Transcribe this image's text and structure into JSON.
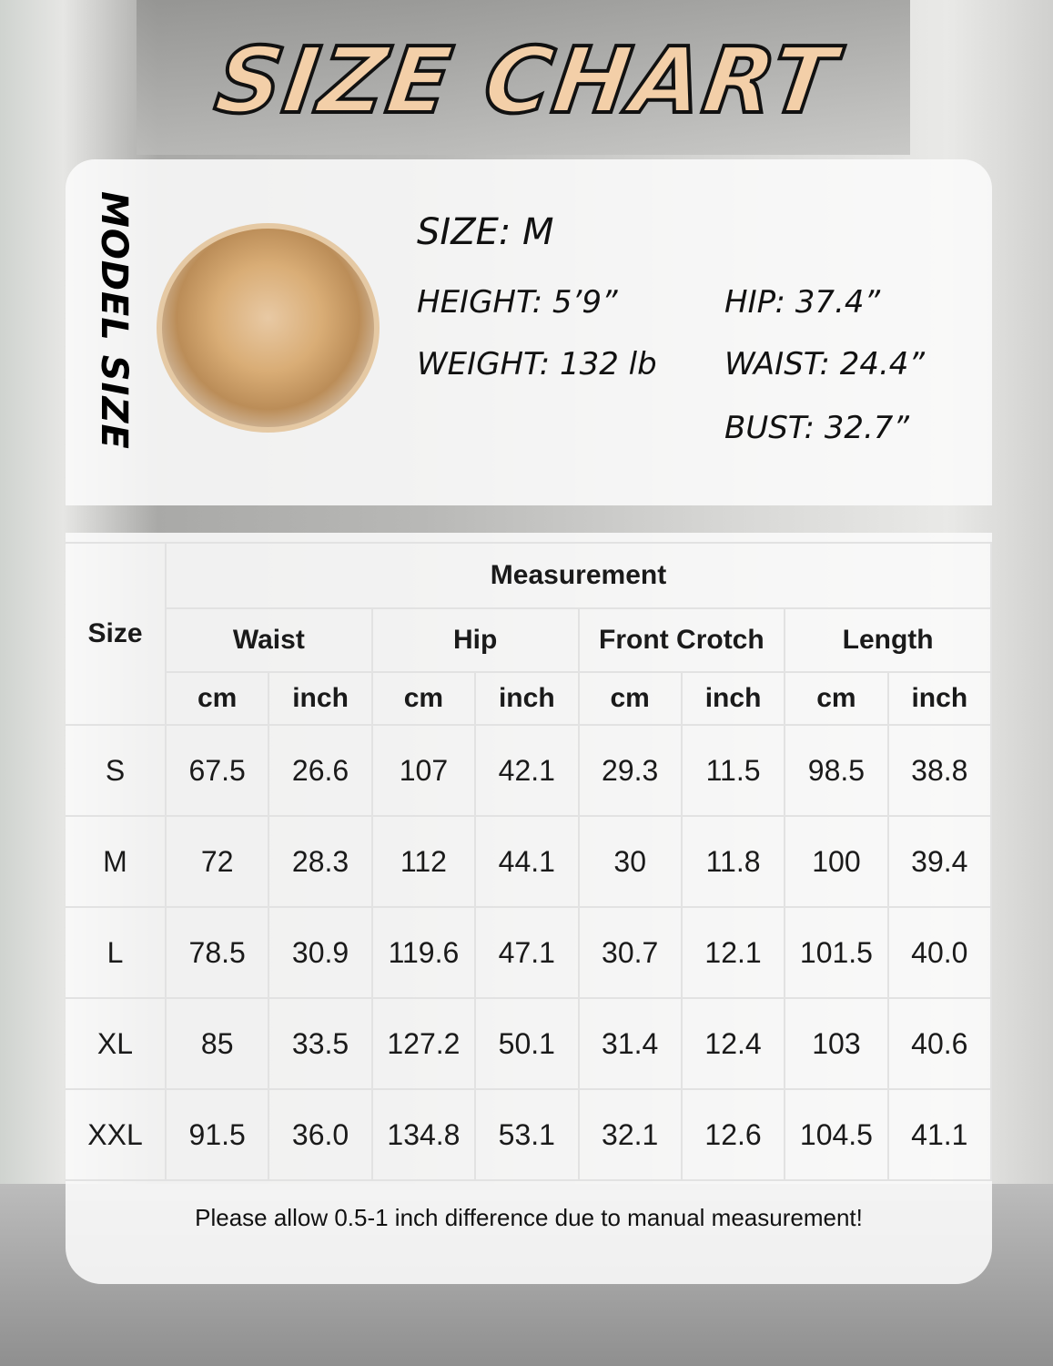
{
  "title": "SIZE CHART",
  "model": {
    "label": "MODEL SIZE",
    "size": "SIZE: M",
    "height": "HEIGHT: 5’9”",
    "weight": "WEIGHT: 132 lb",
    "hip": "HIP: 37.4”",
    "waist": "WAIST: 24.4”",
    "bust": "BUST: 32.7”"
  },
  "table": {
    "size_header": "Size",
    "measurement_header": "Measurement",
    "groups": [
      "Waist",
      "Hip",
      "Front Crotch",
      "Length"
    ],
    "units": [
      "cm",
      "inch",
      "cm",
      "inch",
      "cm",
      "inch",
      "cm",
      "inch"
    ],
    "rows": [
      {
        "size": "S",
        "values": [
          "67.5",
          "26.6",
          "107",
          "42.1",
          "29.3",
          "11.5",
          "98.5",
          "38.8"
        ]
      },
      {
        "size": "M",
        "values": [
          "72",
          "28.3",
          "112",
          "44.1",
          "30",
          "11.8",
          "100",
          "39.4"
        ]
      },
      {
        "size": "L",
        "values": [
          "78.5",
          "30.9",
          "119.6",
          "47.1",
          "30.7",
          "12.1",
          "101.5",
          "40.0"
        ]
      },
      {
        "size": "XL",
        "values": [
          "85",
          "33.5",
          "127.2",
          "50.1",
          "31.4",
          "12.4",
          "103",
          "40.6"
        ]
      },
      {
        "size": "XXL",
        "values": [
          "91.5",
          "36.0",
          "134.8",
          "53.1",
          "32.1",
          "12.6",
          "104.5",
          "41.1"
        ]
      }
    ]
  },
  "note": "Please allow 0.5-1 inch difference due to manual measurement!"
}
